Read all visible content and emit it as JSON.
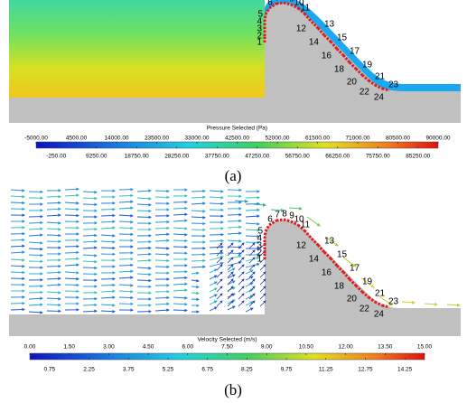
{
  "point_labels": [
    "1",
    "2",
    "3",
    "4",
    "5",
    "6",
    "7",
    "8",
    "9",
    "10",
    "11",
    "12",
    "13",
    "14",
    "15",
    "16",
    "17",
    "18",
    "19",
    "20",
    "21",
    "22",
    "23",
    "24"
  ],
  "panels": [
    {
      "caption": "(a)",
      "colorbar": {
        "title": "Pressure Selected (Pa)",
        "lim": [
          -5000,
          90000
        ],
        "ticks": [
          {
            "value": -5000,
            "label": "-5000.00"
          },
          {
            "value": 4500,
            "label": "4500.00"
          },
          {
            "value": 14000,
            "label": "14000.00"
          },
          {
            "value": 23500,
            "label": "23500.00"
          },
          {
            "value": 33000,
            "label": "33000.00"
          },
          {
            "value": 42500,
            "label": "42500.00"
          },
          {
            "value": 52000,
            "label": "52000.00"
          },
          {
            "value": 61500,
            "label": "61500.00"
          },
          {
            "value": 71000,
            "label": "71000.00"
          },
          {
            "value": 80500,
            "label": "80500.00"
          },
          {
            "value": 90000,
            "label": "90000.00"
          }
        ],
        "mid_ticks": [
          {
            "value": -250,
            "label": "-250.00"
          },
          {
            "value": 9250,
            "label": "9250.00"
          },
          {
            "value": 18750,
            "label": "18750.00"
          },
          {
            "value": 28250,
            "label": "28250.00"
          },
          {
            "value": 37750,
            "label": "37750.00"
          },
          {
            "value": 47250,
            "label": "47250.00"
          },
          {
            "value": 56750,
            "label": "56750.00"
          },
          {
            "value": 66250,
            "label": "66250.00"
          },
          {
            "value": 75750,
            "label": "75750.00"
          },
          {
            "value": 85250,
            "label": "85250.00"
          }
        ]
      }
    },
    {
      "caption": "(b)",
      "colorbar": {
        "title": "Velocity Selected (m/s)",
        "lim": [
          0,
          15
        ],
        "ticks": [
          {
            "value": 0,
            "label": "0.00"
          },
          {
            "value": 1.5,
            "label": "1.50"
          },
          {
            "value": 3,
            "label": "3.00"
          },
          {
            "value": 4.5,
            "label": "4.50"
          },
          {
            "value": 6,
            "label": "6.00"
          },
          {
            "value": 7.5,
            "label": "7.50"
          },
          {
            "value": 9,
            "label": "9.00"
          },
          {
            "value": 10.5,
            "label": "10.50"
          },
          {
            "value": 12,
            "label": "12.00"
          },
          {
            "value": 13.5,
            "label": "13.50"
          },
          {
            "value": 15,
            "label": "15.00"
          }
        ],
        "mid_ticks": [
          {
            "value": 0.75,
            "label": "0.75"
          },
          {
            "value": 2.25,
            "label": "2.25"
          },
          {
            "value": 3.75,
            "label": "3.75"
          },
          {
            "value": 5.25,
            "label": "5.25"
          },
          {
            "value": 6.75,
            "label": "6.75"
          },
          {
            "value": 8.25,
            "label": "8.25"
          },
          {
            "value": 9.75,
            "label": "9.75"
          },
          {
            "value": 11.25,
            "label": "11.25"
          },
          {
            "value": 12.75,
            "label": "12.75"
          },
          {
            "value": 14.25,
            "label": "14.25"
          }
        ]
      }
    }
  ]
}
